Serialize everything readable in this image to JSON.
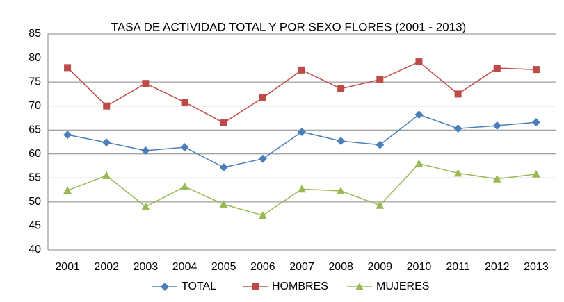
{
  "chart_data": {
    "type": "line",
    "title": "TASA DE ACTIVIDAD TOTAL Y POR SEXO FLORES (2001 - 2013)",
    "categories": [
      "2001",
      "2002",
      "2003",
      "2004",
      "2005",
      "2006",
      "2007",
      "2008",
      "2009",
      "2010",
      "2011",
      "2012",
      "2013"
    ],
    "series": [
      {
        "name": "TOTAL",
        "color": "#4a7ebb",
        "marker": "diamond",
        "values": [
          64.0,
          62.4,
          60.7,
          61.4,
          57.2,
          59.0,
          64.6,
          62.7,
          61.9,
          68.2,
          65.3,
          65.9,
          66.6
        ]
      },
      {
        "name": "HOMBRES",
        "color": "#be4b48",
        "marker": "square",
        "values": [
          78.0,
          70.0,
          74.7,
          70.8,
          66.5,
          71.7,
          77.5,
          73.6,
          75.5,
          79.2,
          72.5,
          77.9,
          77.6
        ]
      },
      {
        "name": "MUJERES",
        "color": "#98b954",
        "marker": "triangle",
        "values": [
          52.4,
          55.5,
          49.0,
          53.2,
          49.5,
          47.2,
          52.7,
          52.3,
          49.3,
          58.0,
          56.0,
          54.8,
          55.8
        ]
      }
    ],
    "ylim": [
      40,
      85
    ],
    "yticks": [
      40,
      45,
      50,
      55,
      60,
      65,
      70,
      75,
      80,
      85
    ],
    "grid": true,
    "legend": "bottom"
  }
}
